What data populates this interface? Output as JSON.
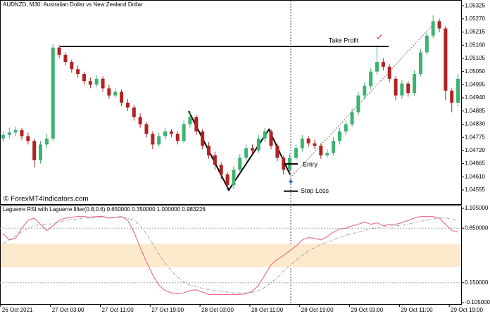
{
  "chart_data": [
    {
      "type": "candlestick",
      "title": "AUDNZD, M30:  Australian Dollar vs New Zealand Dollar",
      "watermark": "© ForexMT4Indicators.com",
      "up_color": "#3cb371",
      "down_color": "#b22222",
      "xlim": [
        0,
        74
      ],
      "xticks": [
        {
          "value": 0.1,
          "label": "26 Oct 2021"
        },
        {
          "value": 8.1,
          "label": "27 Oct 03:00"
        },
        {
          "value": 16.1,
          "label": "27 Oct 11:00"
        },
        {
          "value": 24.1,
          "label": "27 Oct 19:00"
        },
        {
          "value": 32.1,
          "label": "28 Oct 03:00"
        },
        {
          "value": 40.1,
          "label": "28 Oct 11:00"
        },
        {
          "value": 48.1,
          "label": "28 Oct 19:00"
        },
        {
          "value": 56.1,
          "label": "29 Oct 03:00"
        },
        {
          "value": 64.1,
          "label": "29 Oct 11:00"
        },
        {
          "value": 72.1,
          "label": "29 Oct 19:00"
        }
      ],
      "ylim": [
        1.04496,
        1.05349
      ],
      "yticks": [
        1.05325,
        {
          "value": 1.0527,
          "label": "1.05270"
        },
        1.05215,
        {
          "value": 1.0516,
          "label": "1.05160"
        },
        1.05105,
        {
          "value": 1.0505,
          "label": "1.05050"
        },
        1.04995,
        {
          "value": 1.0494,
          "label": "1.04940"
        },
        1.04885,
        {
          "value": 1.0483,
          "label": "1.04830"
        },
        1.04775,
        {
          "value": 1.0472,
          "label": "1.04720"
        },
        1.04665,
        {
          "value": 1.0461,
          "label": "1.04610"
        },
        1.04555
      ],
      "open": [
        1.0477,
        1.04785,
        1.04795,
        1.04805,
        1.0478,
        1.0476,
        1.0468,
        1.04745,
        1.0477,
        1.0515,
        1.0512,
        1.0509,
        1.0506,
        1.0504,
        1.0501,
        1.04995,
        1.0502,
        1.0498,
        1.0495,
        1.04965,
        1.0492,
        1.049,
        1.0486,
        1.0483,
        1.0479,
        1.04745,
        1.0478,
        1.048,
        1.0479,
        1.0476,
        1.0483,
        1.0486,
        1.048,
        1.0474,
        1.047,
        1.0466,
        1.0462,
        1.04575,
        1.0464,
        1.0469,
        1.0473,
        1.0472,
        1.0477,
        1.048,
        1.0474,
        1.0469,
        1.0464,
        1.0469,
        1.0473,
        1.0477,
        1.0475,
        1.0474,
        1.047,
        1.0471,
        1.0476,
        1.048,
        1.0483,
        1.0488,
        1.0495,
        1.0499,
        1.0505,
        1.0509,
        1.0507,
        1.0502,
        1.0495,
        1.05,
        1.0496,
        1.0504,
        1.0513,
        1.052,
        1.0526,
        1.0523,
        1.0497,
        1.0492
      ],
      "high": [
        1.048,
        1.04815,
        1.0482,
        1.04815,
        1.04795,
        1.0477,
        1.0476,
        1.0479,
        1.05165,
        1.0516,
        1.0513,
        1.051,
        1.05075,
        1.0505,
        1.05025,
        1.05035,
        1.0503,
        1.04995,
        1.0498,
        1.04975,
        1.04935,
        1.0491,
        1.04875,
        1.0484,
        1.048,
        1.04795,
        1.04815,
        1.0481,
        1.048,
        1.04845,
        1.04885,
        1.0487,
        1.0481,
        1.04755,
        1.04715,
        1.0467,
        1.0463,
        1.04655,
        1.04705,
        1.04745,
        1.04745,
        1.04785,
        1.04815,
        1.0481,
        1.0475,
        1.047,
        1.04705,
        1.04745,
        1.04785,
        1.0478,
        1.04765,
        1.0475,
        1.04725,
        1.04775,
        1.04815,
        1.04845,
        1.04895,
        1.04965,
        1.05005,
        1.05065,
        1.0516,
        1.05105,
        1.0508,
        1.0503,
        1.05015,
        1.0501,
        1.05055,
        1.05145,
        1.05215,
        1.05285,
        1.0527,
        1.0524,
        1.0498,
        1.0504
      ],
      "low": [
        1.04755,
        1.0477,
        1.0478,
        1.04765,
        1.04745,
        1.0465,
        1.04665,
        1.0473,
        1.0476,
        1.05105,
        1.05075,
        1.05045,
        1.05025,
        1.04995,
        1.0498,
        1.04985,
        1.04965,
        1.04935,
        1.0494,
        1.04905,
        1.04885,
        1.04845,
        1.04815,
        1.04775,
        1.04725,
        1.04735,
        1.04765,
        1.04775,
        1.04745,
        1.0475,
        1.04815,
        1.04785,
        1.04725,
        1.04685,
        1.0464,
        1.046,
        1.04555,
        1.0456,
        1.04625,
        1.04675,
        1.04705,
        1.0471,
        1.04755,
        1.04725,
        1.04675,
        1.0462,
        1.04625,
        1.0468,
        1.04715,
        1.04735,
        1.04725,
        1.04685,
        1.0469,
        1.047,
        1.04745,
        1.04785,
        1.0482,
        1.04865,
        1.04935,
        1.04975,
        1.05035,
        1.05055,
        1.05005,
        1.0493,
        1.04935,
        1.04945,
        1.0495,
        1.0503,
        1.0512,
        1.0519,
        1.05215,
        1.0493,
        1.0488,
        1.04905
      ],
      "close": [
        1.04785,
        1.04795,
        1.04805,
        1.0478,
        1.0476,
        1.0468,
        1.04745,
        1.0477,
        1.0515,
        1.0512,
        1.0509,
        1.0506,
        1.0504,
        1.0501,
        1.04995,
        1.0502,
        1.0498,
        1.0495,
        1.04965,
        1.0492,
        1.049,
        1.0486,
        1.0483,
        1.0479,
        1.04745,
        1.0478,
        1.048,
        1.0479,
        1.0476,
        1.0483,
        1.0486,
        1.048,
        1.0474,
        1.047,
        1.0466,
        1.0462,
        1.04575,
        1.0464,
        1.0469,
        1.0473,
        1.0472,
        1.0477,
        1.048,
        1.0474,
        1.0469,
        1.0464,
        1.0469,
        1.0473,
        1.0477,
        1.0475,
        1.0474,
        1.047,
        1.0471,
        1.0476,
        1.048,
        1.0483,
        1.0488,
        1.0495,
        1.0499,
        1.0505,
        1.0509,
        1.0507,
        1.0502,
        1.0495,
        1.05,
        1.0496,
        1.0504,
        1.0513,
        1.052,
        1.0526,
        1.0523,
        1.0497,
        1.0492,
        1.0502
      ],
      "levels": [
        {
          "name": "Take Profit",
          "value": 1.05155
        },
        {
          "name": "Entry",
          "value": 1.04664
        },
        {
          "name": "Stop Loss",
          "value": 1.0455
        }
      ]
    },
    {
      "type": "line",
      "title": "Laguerre RSI with Laguerre filter(0.8,0.6) 0.650000 0.350000 1.000000 0.983226",
      "xlim": [
        0,
        74
      ],
      "ylim": [
        -0.123,
        1.141
      ],
      "yticks": [
        {
          "value": 1.105,
          "label": "1.105000"
        },
        {
          "value": 0.85,
          "label": "0.850000"
        },
        {
          "value": 0.15,
          "label": "0.150000"
        },
        {
          "value": -0.105,
          "label": "-0.105000"
        }
      ],
      "levels": [
        0.85,
        0.15
      ],
      "band": [
        0.35,
        0.65
      ],
      "band_color": "#fde9cc",
      "series": [
        {
          "color": "#e8729a",
          "values": [
            0.78,
            0.7,
            0.72,
            0.85,
            0.95,
            0.98,
            0.9,
            0.82,
            0.88,
            0.95,
            0.98,
            0.99,
            1.0,
            1.0,
            0.99,
            1.0,
            1.0,
            0.98,
            0.99,
            1.0,
            0.95,
            0.8,
            0.6,
            0.42,
            0.25,
            0.12,
            0.05,
            0.02,
            0.01,
            0.02,
            0.05,
            0.06,
            0.03,
            0.0,
            0.0,
            0.0,
            0.0,
            0.0,
            0.0,
            0.01,
            0.04,
            0.12,
            0.25,
            0.38,
            0.45,
            0.5,
            0.56,
            0.62,
            0.7,
            0.73,
            0.72,
            0.7,
            0.74,
            0.8,
            0.84,
            0.85,
            0.88,
            0.9,
            0.93,
            0.9,
            0.92,
            0.88,
            0.9,
            0.9,
            0.92,
            0.95,
            0.98,
            1.0,
            1.0,
            1.0,
            0.98,
            0.9,
            0.82,
            0.8
          ]
        },
        {
          "color": "#888888",
          "dash": true,
          "values": [
            0.65,
            0.7,
            0.75,
            0.8,
            0.85,
            0.88,
            0.9,
            0.9,
            0.91,
            0.93,
            0.95,
            0.96,
            0.97,
            0.98,
            0.98,
            0.99,
            0.99,
            0.99,
            0.99,
            0.99,
            0.98,
            0.95,
            0.88,
            0.78,
            0.65,
            0.52,
            0.4,
            0.3,
            0.22,
            0.16,
            0.12,
            0.1,
            0.08,
            0.06,
            0.05,
            0.04,
            0.03,
            0.02,
            0.02,
            0.02,
            0.03,
            0.05,
            0.09,
            0.15,
            0.22,
            0.3,
            0.37,
            0.44,
            0.5,
            0.56,
            0.6,
            0.64,
            0.67,
            0.7,
            0.73,
            0.76,
            0.78,
            0.8,
            0.82,
            0.84,
            0.86,
            0.87,
            0.88,
            0.88,
            0.89,
            0.9,
            0.92,
            0.94,
            0.95,
            0.97,
            0.98,
            0.98,
            0.97,
            0.95
          ]
        }
      ]
    }
  ]
}
